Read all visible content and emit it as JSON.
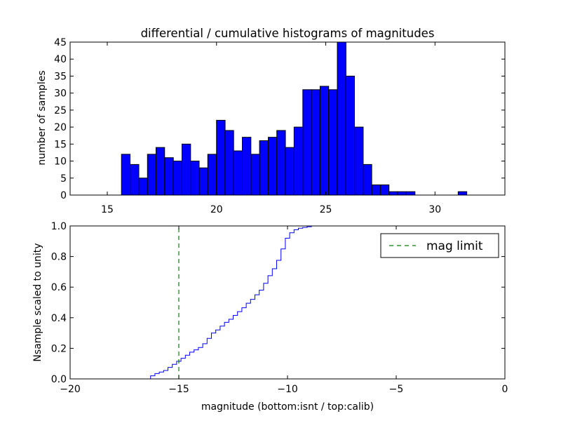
{
  "chart_data": [
    {
      "type": "bar",
      "title": "differential / cumulative histograms of magnitudes",
      "xlabel": "",
      "ylabel": "number of samples",
      "xlim": [
        13.3,
        33.2
      ],
      "ylim": [
        0,
        45
      ],
      "xticks": [
        15,
        20,
        25,
        30
      ],
      "yticks": [
        0,
        5,
        10,
        15,
        20,
        25,
        30,
        35,
        40,
        45
      ],
      "xtick_position": "top",
      "bar_color": "#0000ff",
      "bin_width": 0.395,
      "bin_start": 15.65,
      "bins": [
        {
          "x": 15.65,
          "count": 12
        },
        {
          "x": 16.05,
          "count": 9
        },
        {
          "x": 16.44,
          "count": 5
        },
        {
          "x": 16.84,
          "count": 12
        },
        {
          "x": 17.23,
          "count": 14
        },
        {
          "x": 17.63,
          "count": 11
        },
        {
          "x": 18.02,
          "count": 10
        },
        {
          "x": 18.42,
          "count": 15
        },
        {
          "x": 18.81,
          "count": 10
        },
        {
          "x": 19.21,
          "count": 8
        },
        {
          "x": 19.6,
          "count": 12
        },
        {
          "x": 20.0,
          "count": 22
        },
        {
          "x": 20.39,
          "count": 19
        },
        {
          "x": 20.79,
          "count": 13
        },
        {
          "x": 21.18,
          "count": 17
        },
        {
          "x": 21.58,
          "count": 12
        },
        {
          "x": 21.97,
          "count": 16
        },
        {
          "x": 22.37,
          "count": 17
        },
        {
          "x": 22.76,
          "count": 19
        },
        {
          "x": 23.16,
          "count": 14
        },
        {
          "x": 23.55,
          "count": 20
        },
        {
          "x": 23.95,
          "count": 31
        },
        {
          "x": 24.34,
          "count": 31
        },
        {
          "x": 24.74,
          "count": 32
        },
        {
          "x": 25.13,
          "count": 31
        },
        {
          "x": 25.53,
          "count": 45
        },
        {
          "x": 25.92,
          "count": 35
        },
        {
          "x": 26.32,
          "count": 20
        },
        {
          "x": 26.71,
          "count": 9
        },
        {
          "x": 27.11,
          "count": 3
        },
        {
          "x": 27.5,
          "count": 3
        },
        {
          "x": 27.9,
          "count": 1
        },
        {
          "x": 28.29,
          "count": 1
        },
        {
          "x": 28.69,
          "count": 1
        },
        {
          "x": 29.08,
          "count": 0
        },
        {
          "x": 29.48,
          "count": 0
        },
        {
          "x": 29.87,
          "count": 0
        },
        {
          "x": 30.27,
          "count": 0
        },
        {
          "x": 30.66,
          "count": 0
        },
        {
          "x": 31.06,
          "count": 1
        }
      ]
    },
    {
      "type": "line",
      "title": "",
      "xlabel": "magnitude (bottom:isnt / top:calib)",
      "ylabel": "Nsample scaled to unity",
      "xlim": [
        -20,
        0
      ],
      "ylim": [
        0,
        1.0
      ],
      "xticks": [
        -20,
        -15,
        -10,
        -5,
        0
      ],
      "xtick_labels": [
        "−20",
        "−15",
        "−10",
        "−5",
        "0"
      ],
      "yticks": [
        0.0,
        0.2,
        0.4,
        0.6,
        0.8,
        1.0
      ],
      "ytick_labels": [
        "0.0",
        "0.2",
        "0.4",
        "0.6",
        "0.8",
        "1.0"
      ],
      "legend": "top-right",
      "series": [
        {
          "name": "",
          "style": "steps",
          "color": "#0000ff",
          "x": [
            -20,
            -16.3,
            -16.1,
            -15.9,
            -15.7,
            -15.5,
            -15.3,
            -15.1,
            -14.9,
            -14.7,
            -14.5,
            -14.3,
            -14.1,
            -13.9,
            -13.7,
            -13.5,
            -13.3,
            -13.1,
            -12.9,
            -12.7,
            -12.5,
            -12.3,
            -12.1,
            -11.9,
            -11.7,
            -11.5,
            -11.3,
            -11.1,
            -10.9,
            -10.7,
            -10.5,
            -10.3,
            -10.1,
            -9.9,
            -9.7,
            -9.5,
            -9.3,
            -9.1,
            -8.9,
            -8.7,
            -8.5,
            -8.0,
            0
          ],
          "y": [
            0.0,
            0.02,
            0.035,
            0.045,
            0.055,
            0.075,
            0.095,
            0.115,
            0.135,
            0.155,
            0.175,
            0.19,
            0.205,
            0.23,
            0.265,
            0.3,
            0.32,
            0.345,
            0.37,
            0.39,
            0.415,
            0.44,
            0.465,
            0.495,
            0.52,
            0.55,
            0.58,
            0.625,
            0.675,
            0.72,
            0.775,
            0.85,
            0.92,
            0.955,
            0.975,
            0.985,
            0.99,
            0.995,
            1.0,
            1.0,
            1.0,
            1.0,
            1.0
          ]
        },
        {
          "name": "mag limit",
          "style": "dashed",
          "color": "#008000",
          "x": [
            -15,
            -15
          ],
          "y": [
            0,
            1.0
          ]
        }
      ]
    }
  ]
}
